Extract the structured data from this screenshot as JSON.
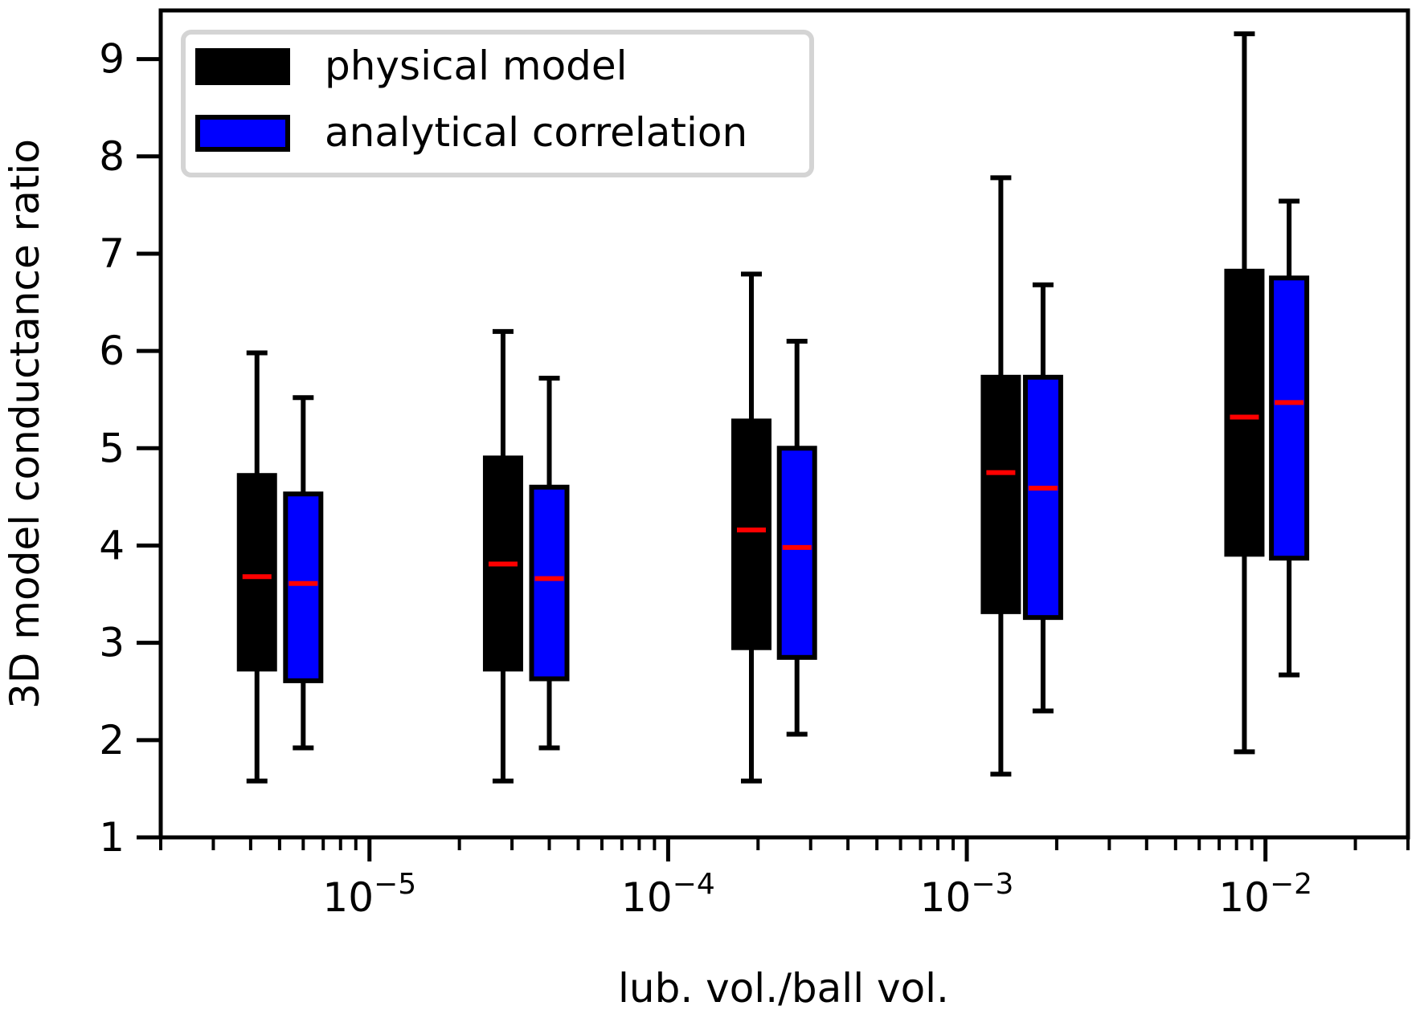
{
  "chart_data": {
    "type": "boxplot",
    "title": "",
    "xlabel": "lub. vol./ball vol.",
    "ylabel": "3D model conductance ratio",
    "xscale": "log",
    "xlim": [
      2e-06,
      0.03
    ],
    "ylim": [
      1,
      9.5
    ],
    "yticks": [
      1,
      2,
      3,
      4,
      5,
      6,
      7,
      8,
      9
    ],
    "xticks_major": [
      {
        "value": 1e-05,
        "base": "10",
        "exponent": "−5"
      },
      {
        "value": 0.0001,
        "base": "10",
        "exponent": "−4"
      },
      {
        "value": 0.001,
        "base": "10",
        "exponent": "−3"
      },
      {
        "value": 0.01,
        "base": "10",
        "exponent": "−2"
      }
    ],
    "legend": {
      "placement": "top-left",
      "entries": [
        {
          "label": "physical model",
          "color": "#000000"
        },
        {
          "label": "analytical correlation",
          "color": "#0000ff"
        }
      ]
    },
    "median_color": "#ff0000",
    "series": [
      {
        "name": "physical model",
        "color": "#000000",
        "boxes": [
          {
            "x": 4.2e-06,
            "whislo": 1.58,
            "q1": 2.73,
            "med": 3.68,
            "q3": 4.72,
            "whishi": 5.98
          },
          {
            "x": 2.8e-05,
            "whislo": 1.58,
            "q1": 2.73,
            "med": 3.81,
            "q3": 4.9,
            "whishi": 6.2
          },
          {
            "x": 0.00019,
            "whislo": 1.58,
            "q1": 2.95,
            "med": 4.16,
            "q3": 5.28,
            "whishi": 6.79
          },
          {
            "x": 0.0013,
            "whislo": 1.65,
            "q1": 3.32,
            "med": 4.75,
            "q3": 5.73,
            "whishi": 7.78
          },
          {
            "x": 0.0085,
            "whislo": 1.88,
            "q1": 3.91,
            "med": 5.32,
            "q3": 6.82,
            "whishi": 9.26
          }
        ]
      },
      {
        "name": "analytical correlation",
        "color": "#0000ff",
        "boxes": [
          {
            "x": 6e-06,
            "whislo": 1.92,
            "q1": 2.61,
            "med": 3.61,
            "q3": 4.53,
            "whishi": 5.52
          },
          {
            "x": 4e-05,
            "whislo": 1.92,
            "q1": 2.63,
            "med": 3.66,
            "q3": 4.6,
            "whishi": 5.72
          },
          {
            "x": 0.00027,
            "whislo": 2.06,
            "q1": 2.85,
            "med": 3.98,
            "q3": 5.0,
            "whishi": 6.1
          },
          {
            "x": 0.0018,
            "whislo": 2.3,
            "q1": 3.26,
            "med": 4.59,
            "q3": 5.73,
            "whishi": 6.68
          },
          {
            "x": 0.012,
            "whislo": 2.67,
            "q1": 3.87,
            "med": 5.47,
            "q3": 6.75,
            "whishi": 7.54
          }
        ]
      }
    ]
  }
}
